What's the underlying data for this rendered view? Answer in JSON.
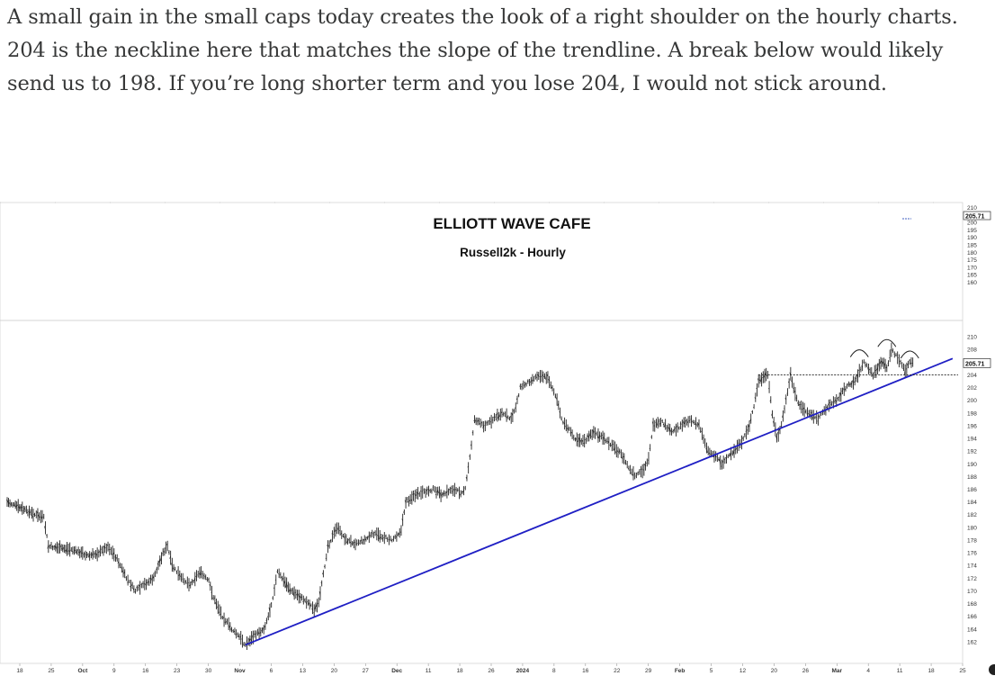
{
  "article": {
    "paragraph": "A small gain in the small caps today creates the look of a right shoulder on the hourly charts. 204 is the neckline here that matches the slope of the trendline. A break below would likely send us to 198. If you’re long shorter term and you lose 204, I would not stick around."
  },
  "chart_data": {
    "type": "line",
    "style": "ohlc-hourly-bars",
    "title": "ELLIOTT WAVE CAFE",
    "subtitle": "Russell2k - Hourly",
    "upper_axis_ticks": [
      210,
      205,
      200,
      195,
      190,
      185,
      180,
      175,
      170,
      165,
      160
    ],
    "upper_axis_last_value": "205.71",
    "y_ticks": [
      210,
      208,
      206,
      204,
      202,
      200,
      198,
      196,
      194,
      192,
      190,
      188,
      186,
      184,
      182,
      180,
      178,
      176,
      174,
      172,
      170,
      168,
      166,
      164,
      162
    ],
    "y_last_value": "205.71",
    "ylim": [
      161,
      211
    ],
    "x_ticks": [
      "18",
      "25",
      "Oct",
      "9",
      "16",
      "23",
      "30",
      "Nov",
      "6",
      "13",
      "20",
      "27",
      "Dec",
      "11",
      "18",
      "26",
      "2024",
      "8",
      "16",
      "22",
      "29",
      "Feb",
      "5",
      "12",
      "20",
      "26",
      "Mar",
      "4",
      "11",
      "18",
      "25"
    ],
    "bold_x_ticks": [
      "Oct",
      "Nov",
      "Dec",
      "2024",
      "Feb",
      "Mar"
    ],
    "series": [
      {
        "values": [
          [
            0,
            184
          ],
          [
            3,
            183
          ],
          [
            6,
            182
          ],
          [
            8,
            181.5
          ],
          [
            9,
            177
          ],
          [
            14,
            176.5
          ],
          [
            18,
            175.5
          ],
          [
            20,
            176
          ],
          [
            22,
            177
          ],
          [
            24,
            175
          ],
          [
            26,
            172
          ],
          [
            28,
            170
          ],
          [
            30,
            171
          ],
          [
            32,
            172
          ],
          [
            34,
            176
          ],
          [
            35,
            177
          ],
          [
            36,
            174
          ],
          [
            38,
            172
          ],
          [
            40,
            171
          ],
          [
            42,
            173
          ],
          [
            44,
            171.5
          ],
          [
            45,
            169
          ],
          [
            47,
            166
          ],
          [
            49,
            164
          ],
          [
            51,
            162.5
          ],
          [
            52,
            161.5
          ],
          [
            54,
            163
          ],
          [
            56,
            164
          ],
          [
            57,
            166
          ],
          [
            58,
            169
          ],
          [
            59,
            173
          ],
          [
            60,
            172
          ],
          [
            62,
            170
          ],
          [
            64,
            169
          ],
          [
            66,
            168
          ],
          [
            67,
            167
          ],
          [
            68,
            168
          ],
          [
            70,
            177
          ],
          [
            72,
            180
          ],
          [
            74,
            178
          ],
          [
            76,
            177.5
          ],
          [
            78,
            178
          ],
          [
            80,
            179
          ],
          [
            82,
            178.5
          ],
          [
            84,
            178
          ],
          [
            86,
            179.5
          ],
          [
            87,
            184
          ],
          [
            89,
            185
          ],
          [
            91,
            185.5
          ],
          [
            93,
            186
          ],
          [
            95,
            185
          ],
          [
            97,
            186
          ],
          [
            99,
            185.5
          ],
          [
            100,
            186
          ],
          [
            101,
            191
          ],
          [
            102,
            197
          ],
          [
            104,
            196
          ],
          [
            106,
            197
          ],
          [
            108,
            198
          ],
          [
            110,
            197
          ],
          [
            111,
            199
          ],
          [
            112,
            202
          ],
          [
            114,
            203
          ],
          [
            116,
            204
          ],
          [
            118,
            203.5
          ],
          [
            119,
            202
          ],
          [
            120,
            200
          ],
          [
            121,
            197
          ],
          [
            122,
            196
          ],
          [
            124,
            194
          ],
          [
            126,
            193.5
          ],
          [
            128,
            195
          ],
          [
            130,
            194
          ],
          [
            132,
            193
          ],
          [
            134,
            191.5
          ],
          [
            136,
            189
          ],
          [
            137,
            188
          ],
          [
            139,
            189
          ],
          [
            140,
            191
          ],
          [
            141,
            196
          ],
          [
            143,
            196.5
          ],
          [
            145,
            195
          ],
          [
            147,
            196
          ],
          [
            149,
            197
          ],
          [
            151,
            196
          ],
          [
            153,
            192
          ],
          [
            155,
            191
          ],
          [
            156,
            190
          ],
          [
            158,
            191.5
          ],
          [
            160,
            193
          ],
          [
            162,
            196
          ],
          [
            163,
            199
          ],
          [
            164,
            203
          ],
          [
            166,
            204
          ],
          [
            167,
            198
          ],
          [
            168,
            194
          ],
          [
            169,
            196
          ],
          [
            170,
            200
          ],
          [
            171,
            204
          ],
          [
            172,
            201
          ],
          [
            173,
            199
          ],
          [
            175,
            198
          ],
          [
            177,
            197
          ],
          [
            179,
            199
          ],
          [
            181,
            200
          ],
          [
            183,
            202
          ],
          [
            185,
            203
          ],
          [
            187,
            206
          ],
          [
            188,
            205
          ],
          [
            189,
            204
          ],
          [
            191,
            206
          ],
          [
            192,
            205
          ],
          [
            193,
            208
          ],
          [
            194,
            207
          ],
          [
            195,
            206
          ],
          [
            196,
            204.5
          ],
          [
            197,
            206
          ],
          [
            198,
            205.7
          ]
        ]
      }
    ],
    "trendline": {
      "from": [
        52,
        161.5
      ],
      "to": [
        204,
        206
      ],
      "color": "#1f1fc4"
    },
    "neckline": {
      "y": 204,
      "from_x": 164,
      "to_x": 204,
      "style": "dashed"
    },
    "shoulder_arcs": [
      {
        "x": 186,
        "y": 207.8
      },
      {
        "x": 192,
        "y": 209.4
      },
      {
        "x": 197,
        "y": 207.6
      }
    ],
    "colors": {
      "bars": "#222222",
      "trendline": "#1f1fc4",
      "grid": "#c8c8c8",
      "axis_text": "#333333"
    },
    "grid": false
  }
}
